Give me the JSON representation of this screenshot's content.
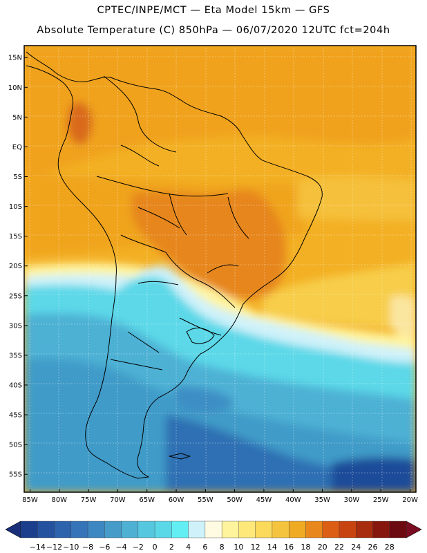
{
  "header": {
    "line1": "CPTEC/INPE/MCT —   Eta Model 15km — GFS",
    "line2": "Absolute Temperature (C) 850hPa — 06/07/2020 12UTC fct=204h"
  },
  "map": {
    "lat_ticks": [
      "15N",
      "10N",
      "5N",
      "EQ",
      "5S",
      "10S",
      "15S",
      "20S",
      "25S",
      "30S",
      "35S",
      "40S",
      "45S",
      "50S",
      "55S"
    ],
    "lon_ticks": [
      "85W",
      "80W",
      "75W",
      "70W",
      "65W",
      "60W",
      "55W",
      "50W",
      "45W",
      "40W",
      "35W",
      "30W",
      "25W",
      "20W"
    ],
    "lat_values": [
      15,
      10,
      5,
      0,
      -5,
      -10,
      -15,
      -20,
      -25,
      -30,
      -35,
      -40,
      -45,
      -50,
      -55
    ],
    "lon_values": [
      -85,
      -80,
      -75,
      -70,
      -65,
      -60,
      -55,
      -50,
      -45,
      -40,
      -35,
      -30,
      -25,
      -20
    ],
    "lat_range": [
      -58,
      17
    ],
    "lon_range": [
      -86,
      -19
    ],
    "grid": true
  },
  "colorbar": {
    "labels": [
      "-14",
      "-12",
      "-10",
      "-8",
      "-6",
      "-4",
      "-2",
      "0",
      "2",
      "4",
      "6",
      "8",
      "10",
      "12",
      "14",
      "16",
      "18",
      "20",
      "22",
      "24",
      "26",
      "28"
    ],
    "colors": [
      "#1b3f8c",
      "#25529e",
      "#2d63ad",
      "#3574b8",
      "#3d87c2",
      "#469bc9",
      "#4eb1d4",
      "#55c7df",
      "#5bd8e8",
      "#63eef3",
      "#cff2fa",
      "#fffbe2",
      "#fff49e",
      "#ffe87a",
      "#fbd95a",
      "#f5c43f",
      "#f0ab24",
      "#e8881c",
      "#dc5e14",
      "#c74410",
      "#a82d0e",
      "#86170e",
      "#6b0a10"
    ],
    "below_color": "#1a2f7a",
    "above_color": "#7a0c22"
  }
}
